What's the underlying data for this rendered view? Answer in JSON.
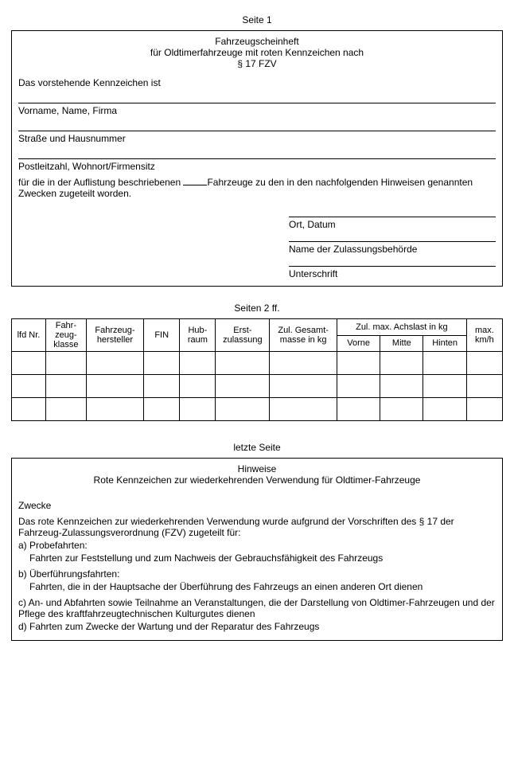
{
  "page1": {
    "label": "Seite 1",
    "title1": "Fahrzeugscheinheft",
    "title2": "für Oldtimerfahrzeuge mit roten Kennzeichen nach",
    "title3": "§ 17 FZV",
    "intro": "Das vorstehende Kennzeichen ist",
    "field1": "Vorname, Name, Firma",
    "field2": "Straße und Hausnummer",
    "field3": "Postleitzahl, Wohnort/Firmensitz",
    "para_a": "für die in der Auflistung beschriebenen ",
    "para_b": "Fahrzeuge zu den in den nachfolgenden Hinweisen genannten Zwecken zugeteilt worden.",
    "sig1": "Ort, Datum",
    "sig2": "Name der Zulassungsbehörde",
    "sig3": "Unterschrift"
  },
  "page2": {
    "label": "Seiten 2 ff.",
    "headers": {
      "c0": "lfd Nr.",
      "c1": "Fahr-\nzeug-\nklasse",
      "c2": "Fahrzeug-\nhersteller",
      "c3": "FIN",
      "c4": "Hub-\nraum",
      "c5": "Erst-\nzulassung",
      "c6": "Zul.\nGesamt-\nmasse in kg",
      "c7_group": "Zul. max. Achslast in kg",
      "c7a": "Vorne",
      "c7b": "Mitte",
      "c7c": "Hinten",
      "c8": "max.\nkm/h"
    },
    "col_widths": {
      "c0": "38px",
      "c1": "45px",
      "c2": "64px",
      "c3": "40px",
      "c4": "40px",
      "c5": "60px",
      "c6": "75px",
      "c7a": "48px",
      "c7b": "48px",
      "c7c": "48px",
      "c8": "40px"
    },
    "empty_rows": 3
  },
  "page3": {
    "label": "letzte Seite",
    "title1": "Hinweise",
    "title2": "Rote Kennzeichen zur wiederkehrenden Verwendung für Oldtimer-Fahrzeuge",
    "section": "Zwecke",
    "intro": "Das rote Kennzeichen zur wiederkehrenden Verwendung wurde aufgrund der Vorschriften des § 17 der Fahrzeug-Zulassungsverordnung (FZV) zugeteilt für:",
    "a_label": "a) Probefahrten:",
    "a_text": "Fahrten zur Feststellung und zum Nachweis der Gebrauchsfähigkeit des Fahrzeugs",
    "b_label": "b) Überführungsfahrten:",
    "b_text": "Fahrten, die in der Hauptsache der Überführung des Fahrzeugs an einen anderen Ort dienen",
    "c_text": "c) An- und Abfahrten sowie Teilnahme an Veranstaltungen, die der Darstellung von Oldtimer-Fahrzeugen und der Pflege des kraftfahrzeugtechnischen Kulturgutes dienen",
    "d_text": "d) Fahrten zum Zwecke der Wartung und der Reparatur des Fahrzeugs"
  }
}
